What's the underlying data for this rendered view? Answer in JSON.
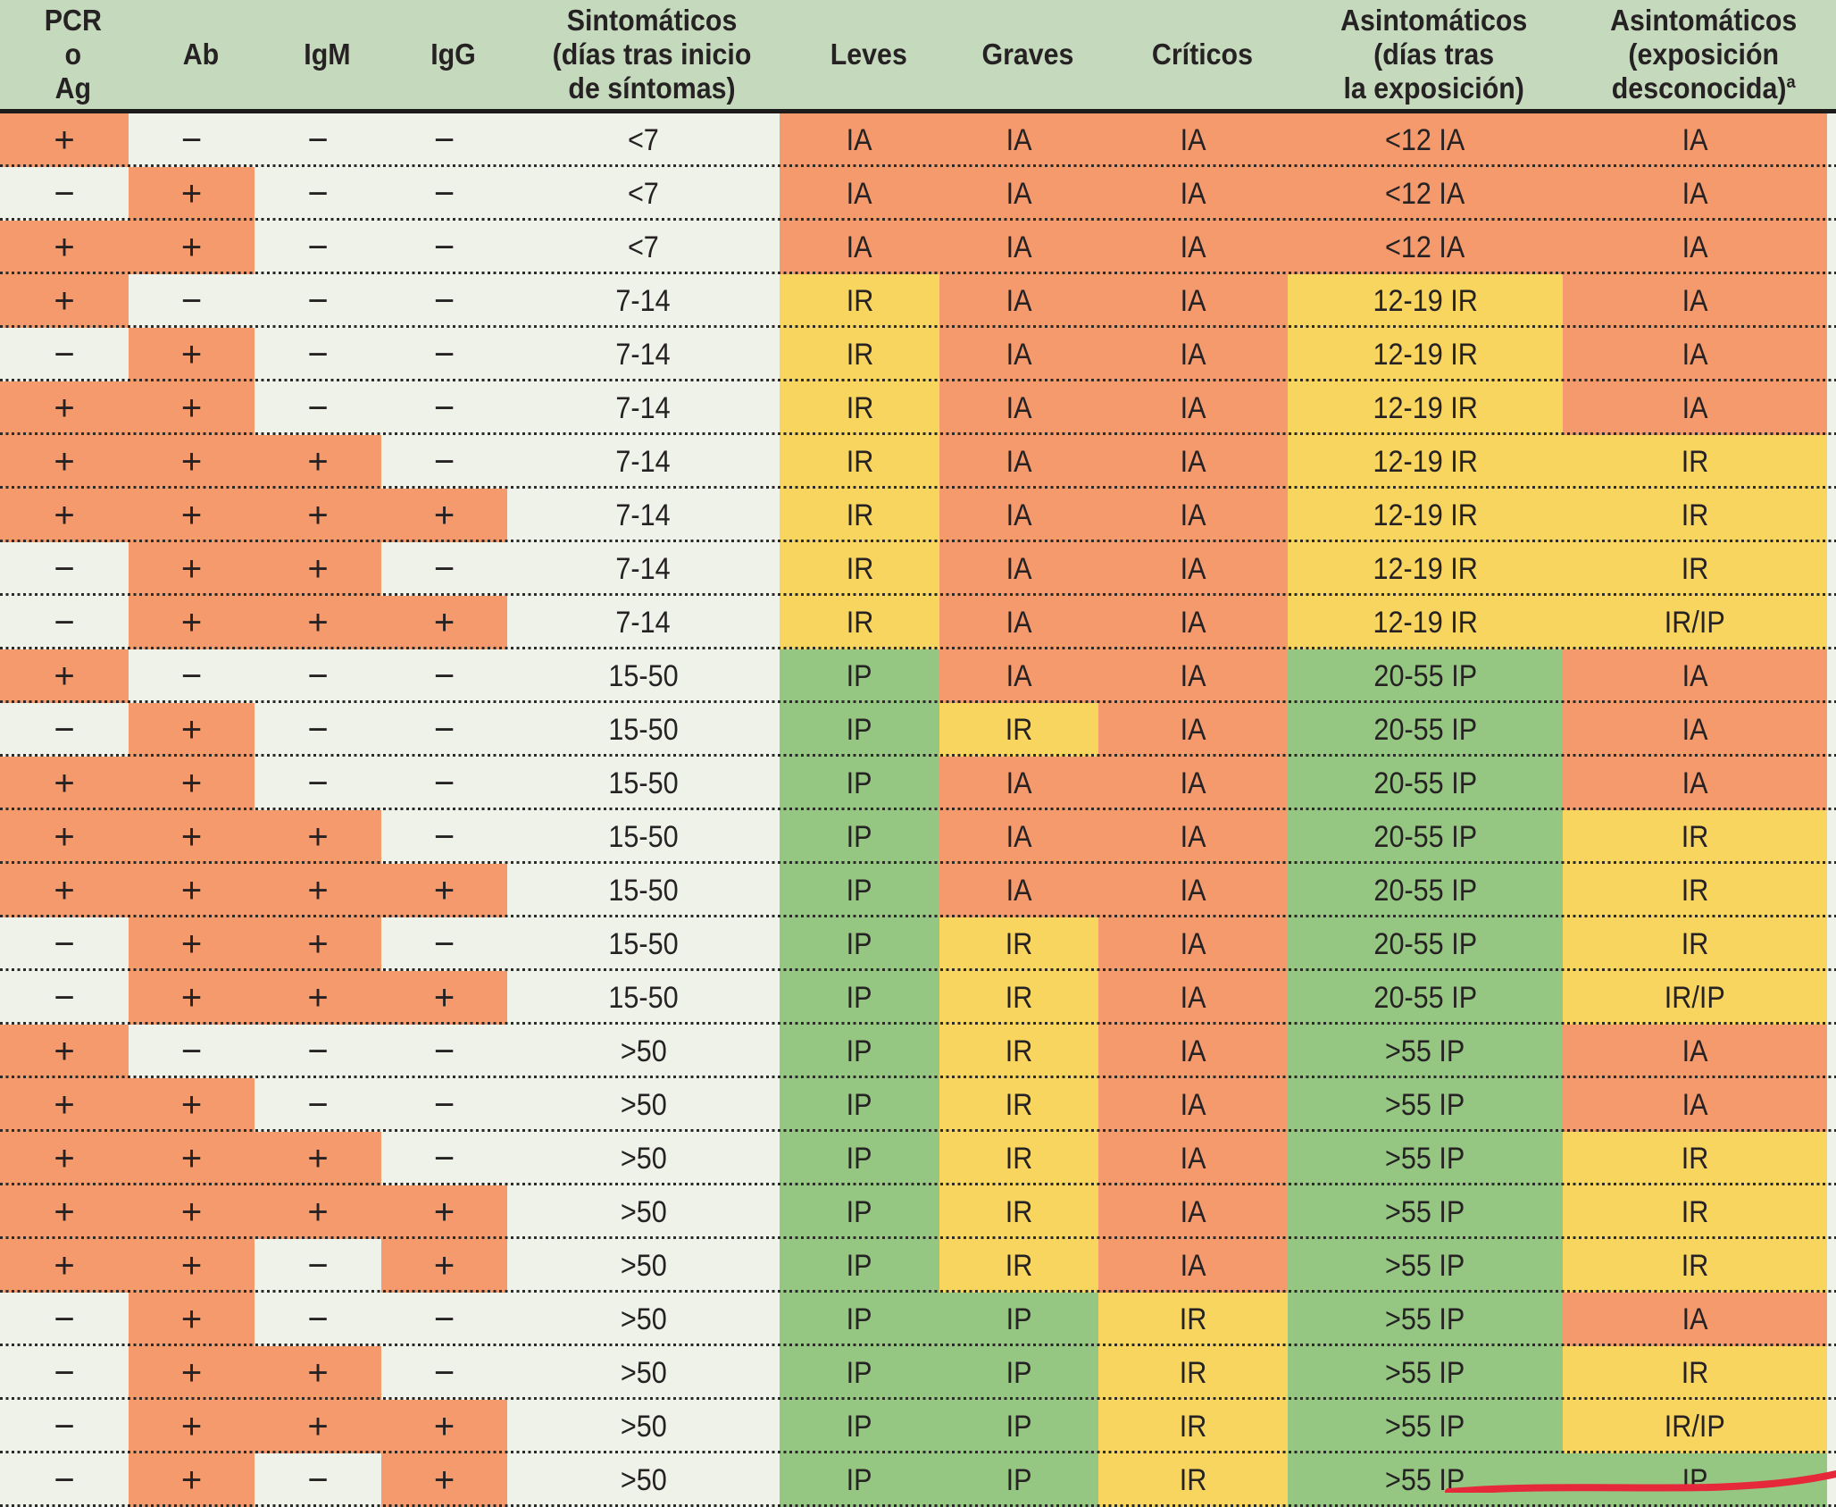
{
  "table": {
    "columns": [
      {
        "id": "pcr",
        "label": "PCR\no\nAg"
      },
      {
        "id": "ab",
        "label": "Ab"
      },
      {
        "id": "igm",
        "label": "IgM"
      },
      {
        "id": "igg",
        "label": "IgG"
      },
      {
        "id": "sintomaticos",
        "label": "Sintomáticos\n(días tras inicio\nde síntomas)"
      },
      {
        "id": "leves",
        "label": "Leves"
      },
      {
        "id": "graves",
        "label": "Graves"
      },
      {
        "id": "criticos",
        "label": "Críticos"
      },
      {
        "id": "asintomaticos-exposicion",
        "label": "Asintomáticos\n(días tras\nla exposición)"
      },
      {
        "id": "asintomaticos-desconocida",
        "label": "Asintomáticos\n(exposición\ndesconocida)",
        "sup": "a"
      }
    ],
    "rows": [
      {
        "cells": [
          "+",
          "−",
          "−",
          "−",
          "<7",
          "IA",
          "IA",
          "IA",
          "<12 IA",
          "IA"
        ]
      },
      {
        "cells": [
          "−",
          "+",
          "−",
          "−",
          "<7",
          "IA",
          "IA",
          "IA",
          "<12 IA",
          "IA"
        ]
      },
      {
        "cells": [
          "+",
          "+",
          "−",
          "−",
          "<7",
          "IA",
          "IA",
          "IA",
          "<12 IA",
          "IA"
        ]
      },
      {
        "cells": [
          "+",
          "−",
          "−",
          "−",
          "7-14",
          "IR",
          "IA",
          "IA",
          "12-19 IR",
          "IA"
        ]
      },
      {
        "cells": [
          "−",
          "+",
          "−",
          "−",
          "7-14",
          "IR",
          "IA",
          "IA",
          "12-19 IR",
          "IA"
        ]
      },
      {
        "cells": [
          "+",
          "+",
          "−",
          "−",
          "7-14",
          "IR",
          "IA",
          "IA",
          "12-19 IR",
          "IA"
        ]
      },
      {
        "cells": [
          "+",
          "+",
          "+",
          "−",
          "7-14",
          "IR",
          "IA",
          "IA",
          "12-19 IR",
          "IR"
        ]
      },
      {
        "cells": [
          "+",
          "+",
          "+",
          "+",
          "7-14",
          "IR",
          "IA",
          "IA",
          "12-19 IR",
          "IR"
        ]
      },
      {
        "cells": [
          "−",
          "+",
          "+",
          "−",
          "7-14",
          "IR",
          "IA",
          "IA",
          "12-19 IR",
          "IR"
        ]
      },
      {
        "cells": [
          "−",
          "+",
          "+",
          "+",
          "7-14",
          "IR",
          "IA",
          "IA",
          "12-19 IR",
          "IR/IP"
        ]
      },
      {
        "cells": [
          "+",
          "−",
          "−",
          "−",
          "15-50",
          "IP",
          "IA",
          "IA",
          "20-55 IP",
          "IA"
        ]
      },
      {
        "cells": [
          "−",
          "+",
          "−",
          "−",
          "15-50",
          "IP",
          "IR",
          "IA",
          "20-55 IP",
          "IA"
        ]
      },
      {
        "cells": [
          "+",
          "+",
          "−",
          "−",
          "15-50",
          "IP",
          "IA",
          "IA",
          "20-55 IP",
          "IA"
        ]
      },
      {
        "cells": [
          "+",
          "+",
          "+",
          "−",
          "15-50",
          "IP",
          "IA",
          "IA",
          "20-55 IP",
          "IR"
        ]
      },
      {
        "cells": [
          "+",
          "+",
          "+",
          "+",
          "15-50",
          "IP",
          "IA",
          "IA",
          "20-55 IP",
          "IR"
        ]
      },
      {
        "cells": [
          "−",
          "+",
          "+",
          "−",
          "15-50",
          "IP",
          "IR",
          "IA",
          "20-55 IP",
          "IR"
        ]
      },
      {
        "cells": [
          "−",
          "+",
          "+",
          "+",
          "15-50",
          "IP",
          "IR",
          "IA",
          "20-55 IP",
          "IR/IP"
        ]
      },
      {
        "cells": [
          "+",
          "−",
          "−",
          "−",
          ">50",
          "IP",
          "IR",
          "IA",
          ">55 IP",
          "IA"
        ]
      },
      {
        "cells": [
          "+",
          "+",
          "−",
          "−",
          ">50",
          "IP",
          "IR",
          "IA",
          ">55 IP",
          "IA"
        ]
      },
      {
        "cells": [
          "+",
          "+",
          "+",
          "−",
          ">50",
          "IP",
          "IR",
          "IA",
          ">55 IP",
          "IR"
        ]
      },
      {
        "cells": [
          "+",
          "+",
          "+",
          "+",
          ">50",
          "IP",
          "IR",
          "IA",
          ">55 IP",
          "IR"
        ]
      },
      {
        "cells": [
          "+",
          "+",
          "−",
          "+",
          ">50",
          "IP",
          "IR",
          "IA",
          ">55 IP",
          "IR"
        ]
      },
      {
        "cells": [
          "−",
          "+",
          "−",
          "−",
          ">50",
          "IP",
          "IP",
          "IR",
          ">55 IP",
          "IA"
        ]
      },
      {
        "cells": [
          "−",
          "+",
          "+",
          "−",
          ">50",
          "IP",
          "IP",
          "IR",
          ">55 IP",
          "IR"
        ]
      },
      {
        "cells": [
          "−",
          "+",
          "+",
          "+",
          ">50",
          "IP",
          "IP",
          "IR",
          ">55 IP",
          "IR/IP"
        ]
      },
      {
        "cells": [
          "−",
          "+",
          "−",
          "+",
          ">50",
          "IP",
          "IP",
          "IR",
          ">55 IP",
          "IP"
        ]
      }
    ],
    "value_legend": {
      "positive_sign": "+",
      "negative_sign": "−",
      "IA": "orange",
      "IR": "yellow",
      "IP": "green",
      "IR/IP": "yellow"
    }
  },
  "colors": {
    "orange": "#f59a6d",
    "yellow": "#f8d55f",
    "green": "#95c783",
    "header_green": "#c5dabc",
    "row_bg": "#eef2e8",
    "dot": "#2a2a28",
    "rule": "#1e1c1b",
    "text": "#262223",
    "annotation_red": "#e5293b"
  },
  "annotation": {
    "shape": "red-pen-ellipse-arc-cut-off-at-bottom"
  }
}
